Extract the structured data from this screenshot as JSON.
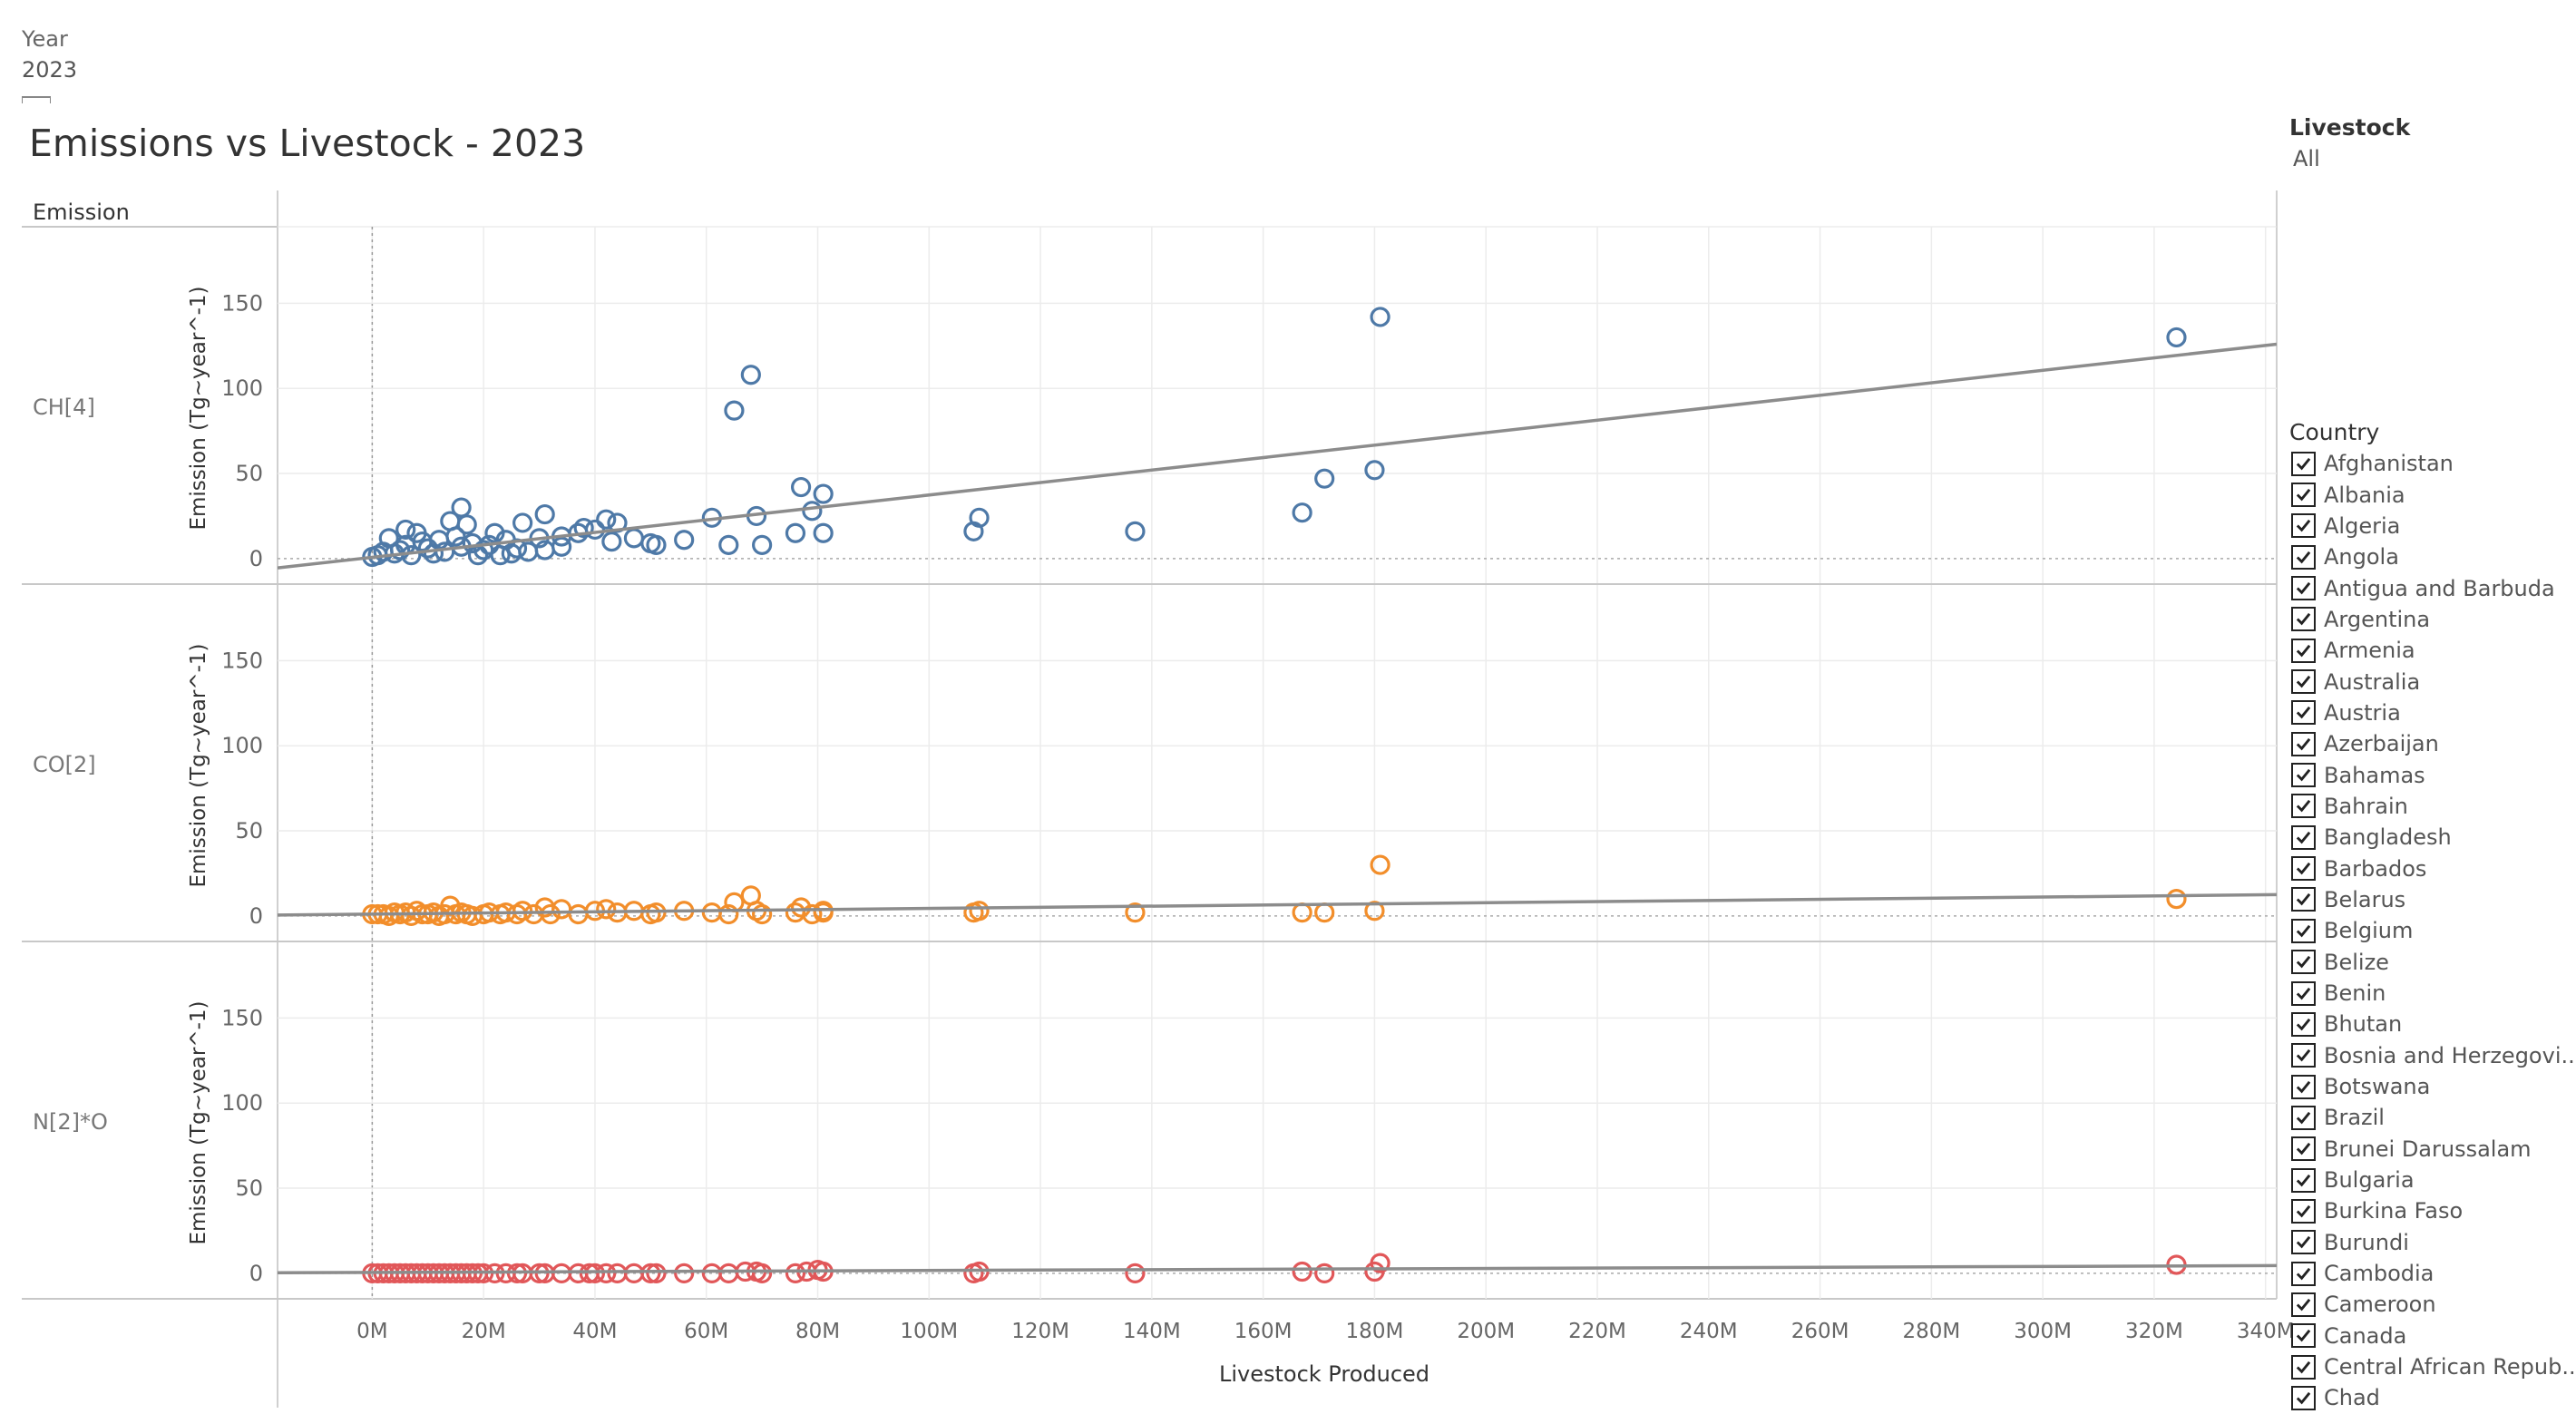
{
  "filters": {
    "year": {
      "label": "Year",
      "value": "2023"
    },
    "livestock": {
      "label": "Livestock",
      "value": "All"
    }
  },
  "title": "Emissions vs Livestock - 2023",
  "legend": {
    "title": "Country",
    "items": [
      "Afghanistan",
      "Albania",
      "Algeria",
      "Angola",
      "Antigua and Barbuda",
      "Argentina",
      "Armenia",
      "Australia",
      "Austria",
      "Azerbaijan",
      "Bahamas",
      "Bahrain",
      "Bangladesh",
      "Barbados",
      "Belarus",
      "Belgium",
      "Belize",
      "Benin",
      "Bhutan",
      "Bosnia and Herzegovi..",
      "Botswana",
      "Brazil",
      "Brunei Darussalam",
      "Bulgaria",
      "Burkina Faso",
      "Burundi",
      "Cambodia",
      "Cameroon",
      "Canada",
      "Central African Repub..",
      "Chad"
    ]
  },
  "colors": {
    "CH[4]": "#4e79a7",
    "CO[2]": "#f28e2b",
    "N[2]*O": "#e15759",
    "trend": "#8c8c8c",
    "grid": "#ececec"
  },
  "chart_data": {
    "type": "scatter",
    "title": "Emissions vs Livestock - 2023",
    "row_header": "Emission",
    "xlabel": "Livestock Produced",
    "ylabel": "Emission (Tg~year^-1)",
    "xlim": [
      -17000000,
      342000000
    ],
    "ylim": [
      -15,
      195
    ],
    "x_ticks": [
      "0M",
      "20M",
      "40M",
      "60M",
      "80M",
      "100M",
      "120M",
      "140M",
      "160M",
      "180M",
      "200M",
      "220M",
      "240M",
      "260M",
      "280M",
      "300M",
      "320M",
      "340M"
    ],
    "y_ticks": [
      0,
      50,
      100,
      150
    ],
    "series": [
      {
        "name": "CH[4]",
        "trend": [
          [
            -17000000,
            -5.5
          ],
          [
            342000000,
            126
          ]
        ],
        "points": [
          [
            0,
            1
          ],
          [
            1000000,
            2
          ],
          [
            2000000,
            4
          ],
          [
            3000000,
            12
          ],
          [
            4000000,
            3
          ],
          [
            5000000,
            5
          ],
          [
            6000000,
            8
          ],
          [
            6000000,
            17
          ],
          [
            7000000,
            2
          ],
          [
            8000000,
            15
          ],
          [
            9000000,
            10
          ],
          [
            10000000,
            6
          ],
          [
            11000000,
            3
          ],
          [
            12000000,
            11
          ],
          [
            13000000,
            4
          ],
          [
            14000000,
            22
          ],
          [
            15000000,
            13
          ],
          [
            16000000,
            7
          ],
          [
            16000000,
            30
          ],
          [
            17000000,
            20
          ],
          [
            18000000,
            9
          ],
          [
            19000000,
            2
          ],
          [
            20000000,
            5
          ],
          [
            21000000,
            8
          ],
          [
            22000000,
            15
          ],
          [
            23000000,
            2
          ],
          [
            24000000,
            11
          ],
          [
            25000000,
            3
          ],
          [
            26000000,
            6
          ],
          [
            27000000,
            21
          ],
          [
            28000000,
            4
          ],
          [
            30000000,
            12
          ],
          [
            31000000,
            5
          ],
          [
            31000000,
            26
          ],
          [
            34000000,
            7
          ],
          [
            34000000,
            13
          ],
          [
            37000000,
            15
          ],
          [
            38000000,
            18
          ],
          [
            40000000,
            17
          ],
          [
            42000000,
            23
          ],
          [
            43000000,
            10
          ],
          [
            44000000,
            21
          ],
          [
            47000000,
            12
          ],
          [
            50000000,
            9
          ],
          [
            51000000,
            8
          ],
          [
            56000000,
            11
          ],
          [
            61000000,
            24
          ],
          [
            64000000,
            8
          ],
          [
            65000000,
            87
          ],
          [
            68000000,
            108
          ],
          [
            69000000,
            25
          ],
          [
            70000000,
            8
          ],
          [
            76000000,
            15
          ],
          [
            77000000,
            42
          ],
          [
            79000000,
            28
          ],
          [
            81000000,
            38
          ],
          [
            81000000,
            15
          ],
          [
            108000000,
            16
          ],
          [
            109000000,
            24
          ],
          [
            137000000,
            16
          ],
          [
            167000000,
            27
          ],
          [
            171000000,
            47
          ],
          [
            180000000,
            52
          ],
          [
            181000000,
            142
          ],
          [
            324000000,
            130
          ]
        ]
      },
      {
        "name": "CO[2]",
        "trend": [
          [
            -17000000,
            0.5
          ],
          [
            342000000,
            12.5
          ]
        ],
        "points": [
          [
            0,
            1
          ],
          [
            1000000,
            1
          ],
          [
            2000000,
            1
          ],
          [
            3000000,
            0
          ],
          [
            4000000,
            2
          ],
          [
            5000000,
            1
          ],
          [
            6000000,
            2
          ],
          [
            7000000,
            0
          ],
          [
            8000000,
            3
          ],
          [
            9000000,
            1
          ],
          [
            10000000,
            1
          ],
          [
            11000000,
            2
          ],
          [
            12000000,
            0
          ],
          [
            13000000,
            1
          ],
          [
            14000000,
            6
          ],
          [
            15000000,
            1
          ],
          [
            16000000,
            2
          ],
          [
            17000000,
            1
          ],
          [
            18000000,
            0
          ],
          [
            20000000,
            1
          ],
          [
            21000000,
            2
          ],
          [
            23000000,
            1
          ],
          [
            24000000,
            2
          ],
          [
            26000000,
            1
          ],
          [
            27000000,
            3
          ],
          [
            29000000,
            1
          ],
          [
            31000000,
            5
          ],
          [
            32000000,
            1
          ],
          [
            34000000,
            4
          ],
          [
            37000000,
            1
          ],
          [
            40000000,
            3
          ],
          [
            42000000,
            4
          ],
          [
            44000000,
            2
          ],
          [
            47000000,
            3
          ],
          [
            50000000,
            1
          ],
          [
            51000000,
            2
          ],
          [
            56000000,
            3
          ],
          [
            61000000,
            2
          ],
          [
            64000000,
            1
          ],
          [
            65000000,
            8
          ],
          [
            68000000,
            12
          ],
          [
            69000000,
            3
          ],
          [
            70000000,
            1
          ],
          [
            76000000,
            2
          ],
          [
            77000000,
            5
          ],
          [
            79000000,
            1
          ],
          [
            81000000,
            3
          ],
          [
            81000000,
            2
          ],
          [
            108000000,
            2
          ],
          [
            109000000,
            3
          ],
          [
            137000000,
            2
          ],
          [
            167000000,
            2
          ],
          [
            171000000,
            2
          ],
          [
            180000000,
            3
          ],
          [
            181000000,
            30
          ],
          [
            324000000,
            10
          ]
        ]
      },
      {
        "name": "N[2]*O",
        "trend": [
          [
            -17000000,
            0.3
          ],
          [
            342000000,
            4.5
          ]
        ],
        "points": [
          [
            0,
            0
          ],
          [
            1000000,
            0
          ],
          [
            2000000,
            0
          ],
          [
            3000000,
            0
          ],
          [
            4000000,
            0
          ],
          [
            5000000,
            0
          ],
          [
            6000000,
            0
          ],
          [
            7000000,
            0
          ],
          [
            8000000,
            0
          ],
          [
            9000000,
            0
          ],
          [
            10000000,
            0
          ],
          [
            11000000,
            0
          ],
          [
            12000000,
            0
          ],
          [
            13000000,
            0
          ],
          [
            14000000,
            0
          ],
          [
            15000000,
            0
          ],
          [
            16000000,
            0
          ],
          [
            17000000,
            0
          ],
          [
            18000000,
            0
          ],
          [
            19000000,
            0
          ],
          [
            20000000,
            0
          ],
          [
            22000000,
            0
          ],
          [
            24000000,
            0
          ],
          [
            26000000,
            0
          ],
          [
            27000000,
            0
          ],
          [
            30000000,
            0
          ],
          [
            31000000,
            0
          ],
          [
            34000000,
            0
          ],
          [
            37000000,
            0
          ],
          [
            39000000,
            0
          ],
          [
            40000000,
            0
          ],
          [
            42000000,
            0
          ],
          [
            44000000,
            0
          ],
          [
            47000000,
            0
          ],
          [
            50000000,
            0
          ],
          [
            51000000,
            0
          ],
          [
            56000000,
            0
          ],
          [
            61000000,
            0
          ],
          [
            64000000,
            0
          ],
          [
            67000000,
            1
          ],
          [
            69000000,
            1
          ],
          [
            70000000,
            0
          ],
          [
            76000000,
            0
          ],
          [
            78000000,
            1
          ],
          [
            80000000,
            2
          ],
          [
            81000000,
            1
          ],
          [
            108000000,
            0
          ],
          [
            109000000,
            1
          ],
          [
            137000000,
            0
          ],
          [
            167000000,
            1
          ],
          [
            171000000,
            0
          ],
          [
            180000000,
            1
          ],
          [
            181000000,
            6
          ],
          [
            324000000,
            5
          ]
        ]
      }
    ]
  }
}
